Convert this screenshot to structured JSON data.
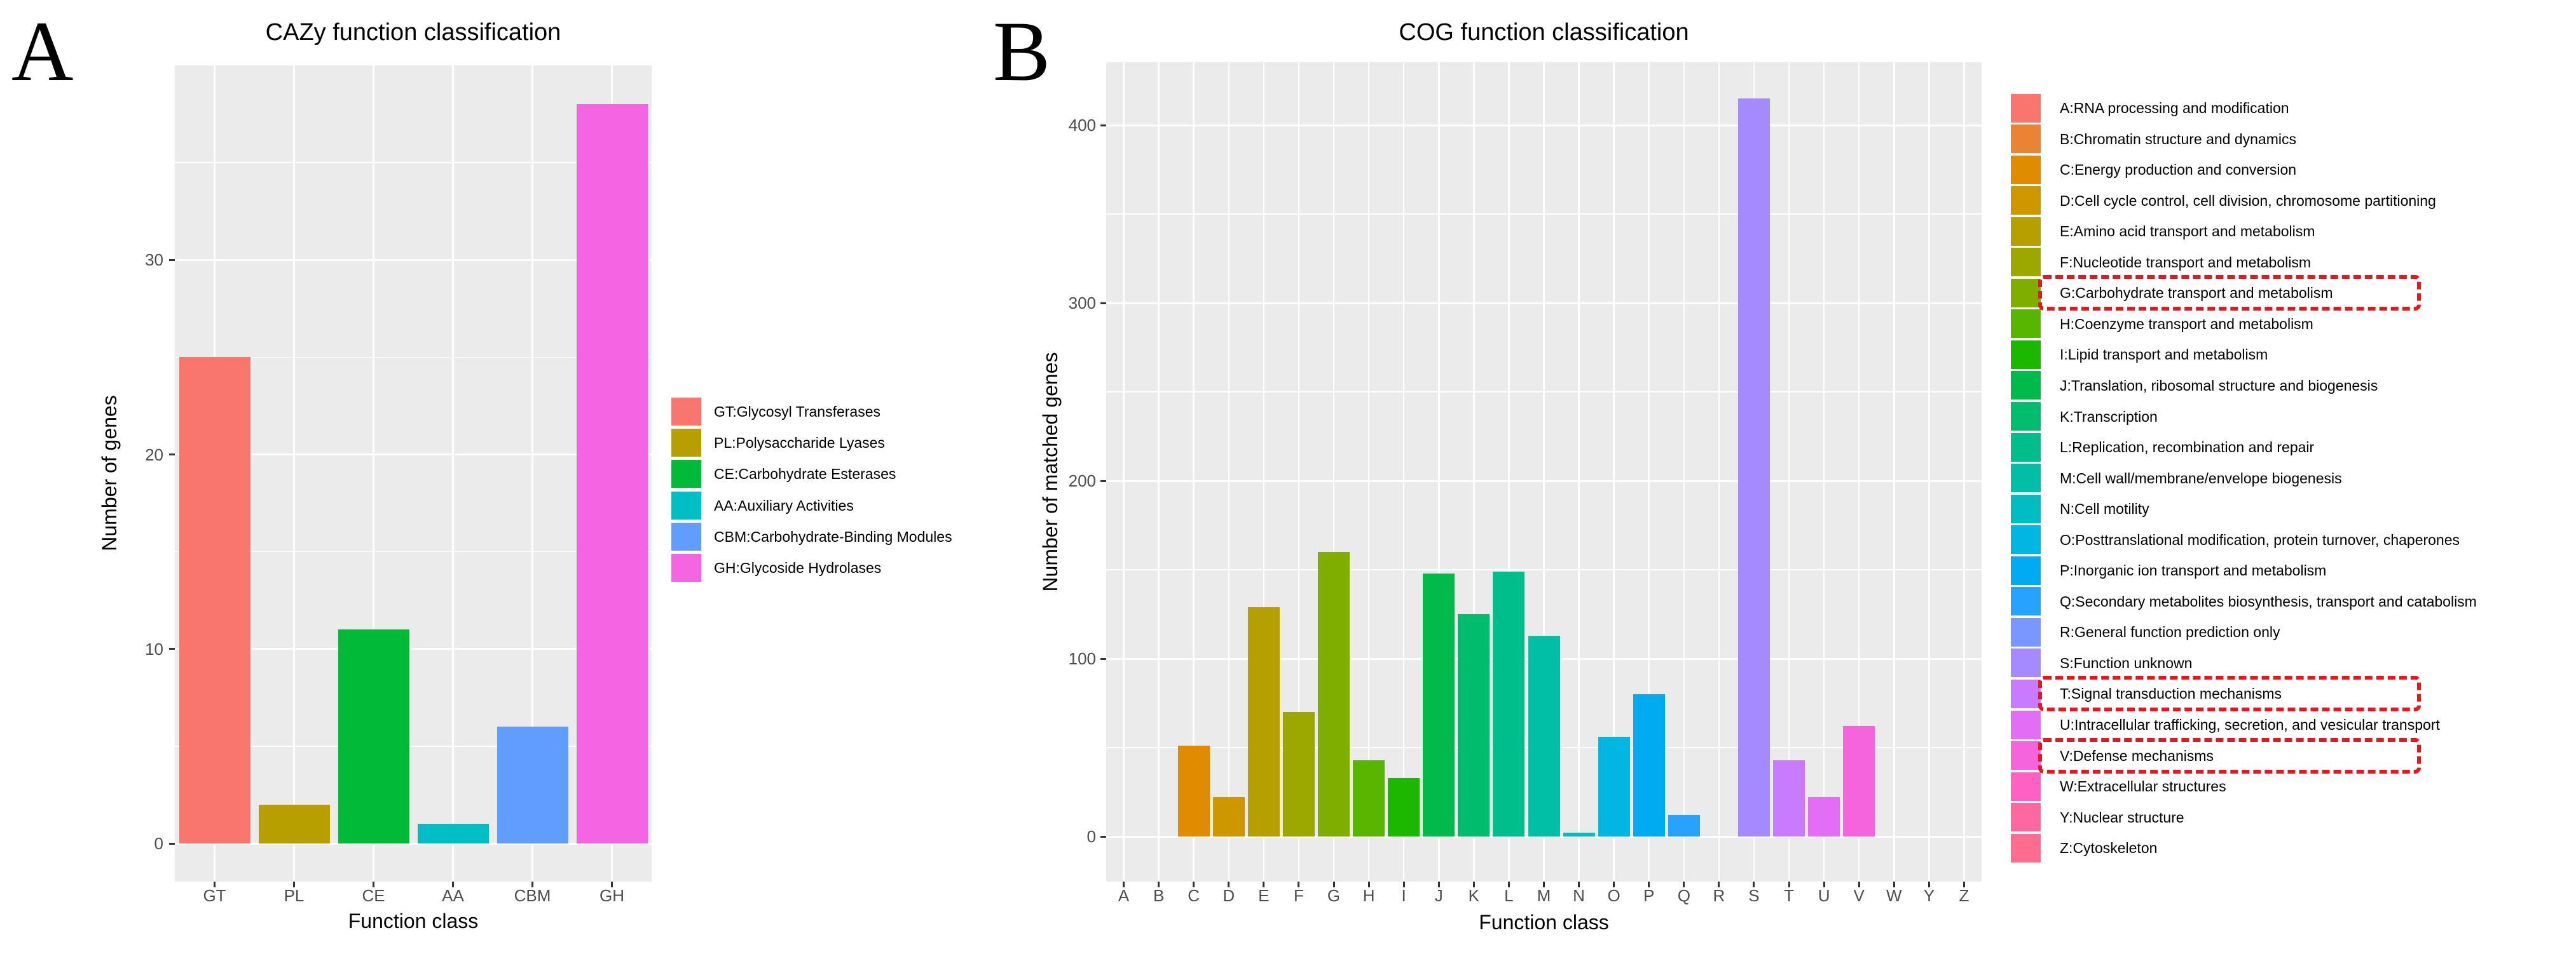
{
  "style": {
    "plot_bg": "#EBEBEB",
    "grid_color": "#FFFFFF",
    "tick_text_color": "#4D4D4D",
    "highlight_box_color": "#E3191F"
  },
  "chart_data": [
    {
      "id": "cazy",
      "panel_letter": "A",
      "type": "bar",
      "title": "CAZy function classification",
      "xlabel": "Function class",
      "ylabel": "Number of genes",
      "categories": [
        "GT",
        "PL",
        "CE",
        "AA",
        "CBM",
        "GH"
      ],
      "values": [
        25,
        2,
        11,
        1,
        6,
        38
      ],
      "bar_colors": [
        "#F8766D",
        "#B79F00",
        "#00BA38",
        "#00BFC4",
        "#619CFF",
        "#F564E3"
      ],
      "yticks": [
        0,
        10,
        20,
        30
      ],
      "yticks_minor": [
        5,
        15,
        25,
        35
      ],
      "ylim": [
        0,
        40
      ],
      "grid": true,
      "legend_position": "right",
      "legend": [
        {
          "code": "GT",
          "label": "GT:Glycosyl Transferases",
          "color": "#F8766D"
        },
        {
          "code": "PL",
          "label": "PL:Polysaccharide Lyases",
          "color": "#B79F00"
        },
        {
          "code": "CE",
          "label": "CE:Carbohydrate Esterases",
          "color": "#00BA38"
        },
        {
          "code": "AA",
          "label": "AA:Auxiliary Activities",
          "color": "#00BFC4"
        },
        {
          "code": "CBM",
          "label": "CBM:Carbohydrate-Binding Modules",
          "color": "#619CFF"
        },
        {
          "code": "GH",
          "label": "GH:Glycoside Hydrolases",
          "color": "#F564E3"
        }
      ]
    },
    {
      "id": "cog",
      "panel_letter": "B",
      "type": "bar",
      "title": "COG function classification",
      "xlabel": "Function class",
      "ylabel": "Number of matched genes",
      "categories": [
        "A",
        "B",
        "C",
        "D",
        "E",
        "F",
        "G",
        "H",
        "I",
        "J",
        "K",
        "L",
        "M",
        "N",
        "O",
        "P",
        "Q",
        "R",
        "S",
        "T",
        "U",
        "V",
        "W",
        "Y",
        "Z"
      ],
      "values": [
        0,
        0,
        51,
        22,
        129,
        70,
        160,
        43,
        33,
        148,
        125,
        149,
        113,
        2,
        56,
        80,
        12,
        0,
        415,
        43,
        22,
        62,
        0,
        0,
        0
      ],
      "bar_colors": [
        "#F8766D",
        "#EB8335",
        "#E08B00",
        "#CE9700",
        "#B5A000",
        "#9CA700",
        "#7FAE00",
        "#58B500",
        "#1CB800",
        "#00BB4C",
        "#00BD6E",
        "#00BE8C",
        "#00BFA6",
        "#00BDC3",
        "#00B7E4",
        "#00ABF2",
        "#27A2FF",
        "#7A96FF",
        "#A58AFF",
        "#C87BFF",
        "#E46DF5",
        "#F564DC",
        "#FF61C2",
        "#FF689E",
        "#FF6C8E"
      ],
      "yticks": [
        0,
        100,
        200,
        300,
        400
      ],
      "yticks_minor": [
        50,
        150,
        250,
        350
      ],
      "ylim": [
        0,
        435
      ],
      "grid": true,
      "legend_position": "right",
      "highlighted_categories": [
        "G",
        "T",
        "V"
      ],
      "legend": [
        {
          "code": "A",
          "label": "A:RNA processing and modification",
          "color": "#F8766D"
        },
        {
          "code": "B",
          "label": "B:Chromatin structure and dynamics",
          "color": "#EB8335"
        },
        {
          "code": "C",
          "label": "C:Energy production and conversion",
          "color": "#E08B00"
        },
        {
          "code": "D",
          "label": "D:Cell cycle control, cell division, chromosome partitioning",
          "color": "#CE9700"
        },
        {
          "code": "E",
          "label": "E:Amino acid transport and metabolism",
          "color": "#B5A000"
        },
        {
          "code": "F",
          "label": "F:Nucleotide transport and metabolism",
          "color": "#9CA700"
        },
        {
          "code": "G",
          "label": "G:Carbohydrate transport and metabolism",
          "color": "#7FAE00"
        },
        {
          "code": "H",
          "label": "H:Coenzyme transport and metabolism",
          "color": "#58B500"
        },
        {
          "code": "I",
          "label": "I:Lipid transport and metabolism",
          "color": "#1CB800"
        },
        {
          "code": "J",
          "label": "J:Translation, ribosomal structure and biogenesis",
          "color": "#00BB4C"
        },
        {
          "code": "K",
          "label": "K:Transcription",
          "color": "#00BD6E"
        },
        {
          "code": "L",
          "label": "L:Replication, recombination and repair",
          "color": "#00BE8C"
        },
        {
          "code": "M",
          "label": "M:Cell wall/membrane/envelope biogenesis",
          "color": "#00BFA6"
        },
        {
          "code": "N",
          "label": "N:Cell motility",
          "color": "#00BDC3"
        },
        {
          "code": "O",
          "label": "O:Posttranslational modification, protein turnover, chaperones",
          "color": "#00B7E4"
        },
        {
          "code": "P",
          "label": "P:Inorganic ion transport and metabolism",
          "color": "#00ABF2"
        },
        {
          "code": "Q",
          "label": "Q:Secondary metabolites biosynthesis, transport and catabolism",
          "color": "#27A2FF"
        },
        {
          "code": "R",
          "label": "R:General function prediction only",
          "color": "#7A96FF"
        },
        {
          "code": "S",
          "label": "S:Function unknown",
          "color": "#A58AFF"
        },
        {
          "code": "T",
          "label": "T:Signal transduction mechanisms",
          "color": "#C87BFF"
        },
        {
          "code": "U",
          "label": "U:Intracellular trafficking, secretion, and vesicular transport",
          "color": "#E46DF5"
        },
        {
          "code": "V",
          "label": "V:Defense mechanisms",
          "color": "#F564DC"
        },
        {
          "code": "W",
          "label": "W:Extracellular structures",
          "color": "#FF61C2"
        },
        {
          "code": "Y",
          "label": "Y:Nuclear structure",
          "color": "#FF689E"
        },
        {
          "code": "Z",
          "label": "Z:Cytoskeleton",
          "color": "#FF6C8E"
        }
      ]
    }
  ]
}
